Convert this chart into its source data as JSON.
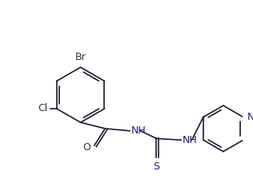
{
  "bg_color": "#ffffff",
  "line_color": "#1a1a2e",
  "atom_colors": {
    "Br": "#333333",
    "Cl": "#333333",
    "O": "#333333",
    "N": "#1a1a6e",
    "S": "#1a1a6e",
    "H": "#333333"
  },
  "font_size": 9,
  "line_width": 1.2
}
